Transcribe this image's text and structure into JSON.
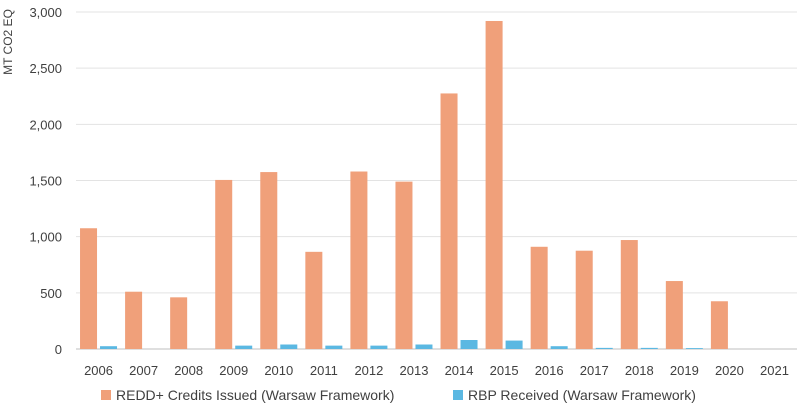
{
  "chart_data": {
    "type": "bar",
    "title": "",
    "xlabel": "",
    "ylabel": "MT CO2 EQ",
    "ylim": [
      0,
      3000
    ],
    "yticks": [
      0,
      500,
      1000,
      1500,
      2000,
      2500,
      3000
    ],
    "ytick_labels": [
      "0",
      "500",
      "1,000",
      "1,500",
      "2,000",
      "2,500",
      "3,000"
    ],
    "grid": true,
    "legend_position": "bottom",
    "categories": [
      "2006",
      "2007",
      "2008",
      "2009",
      "2010",
      "2011",
      "2012",
      "2013",
      "2014",
      "2015",
      "2016",
      "2017",
      "2018",
      "2019",
      "2020",
      "2021"
    ],
    "series": [
      {
        "name": "REDD+ Credits Issued (Warsaw Framework)",
        "color": "#f0a07a",
        "values": [
          1075,
          510,
          460,
          1505,
          1575,
          865,
          1580,
          1490,
          2275,
          2920,
          910,
          875,
          970,
          605,
          425,
          0
        ]
      },
      {
        "name": "RBP Received (Warsaw Framework)",
        "color": "#5bb8e2",
        "values": [
          25,
          0,
          0,
          30,
          40,
          30,
          30,
          40,
          80,
          75,
          25,
          10,
          10,
          8,
          0,
          0
        ]
      }
    ]
  }
}
